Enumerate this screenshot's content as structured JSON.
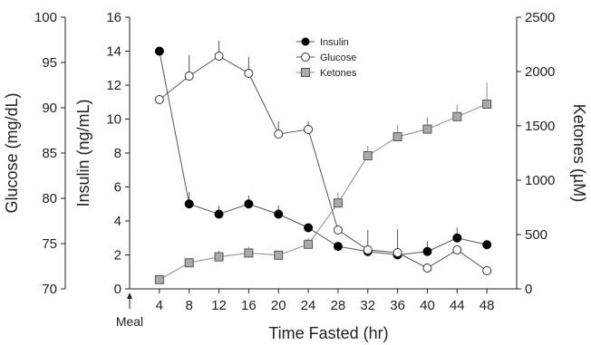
{
  "chart_data": {
    "type": "line",
    "xlabel": "Time Fasted (hr)",
    "x": [
      4,
      8,
      12,
      16,
      20,
      24,
      28,
      32,
      36,
      40,
      44,
      48
    ],
    "xlim": [
      0,
      52
    ],
    "xticks": [
      4,
      8,
      12,
      16,
      20,
      24,
      28,
      32,
      36,
      40,
      44,
      48
    ],
    "annotation": "Meal",
    "annotation_x": 0,
    "axes": {
      "glucose": {
        "label": "Glucose (mg/dL)",
        "position": "outer-left",
        "range": [
          70,
          100
        ],
        "ticks": [
          70,
          75,
          80,
          85,
          90,
          95,
          100
        ]
      },
      "insulin": {
        "label": "Insulin (ng/mL)",
        "position": "inner-left",
        "range": [
          0,
          16
        ],
        "ticks": [
          0,
          2,
          4,
          6,
          8,
          10,
          12,
          14,
          16
        ]
      },
      "ketones": {
        "label": "Ketones (µM)",
        "position": "right",
        "range": [
          0,
          2500
        ],
        "ticks": [
          0,
          500,
          1000,
          1500,
          2000,
          2500
        ]
      }
    },
    "legend_position": "top-center",
    "grid": false,
    "series": [
      {
        "name": "Insulin",
        "axis": "insulin",
        "marker": "circle-filled",
        "color": "#000000",
        "values": [
          14.0,
          5.0,
          4.4,
          5.0,
          4.4,
          3.6,
          2.5,
          2.2,
          2.0,
          2.2,
          3.0,
          2.6
        ],
        "errors": [
          0.0,
          0.7,
          0.5,
          0.5,
          0.5,
          0.0,
          0.0,
          0.0,
          0.0,
          0.6,
          0.6,
          0.0
        ]
      },
      {
        "name": "Glucose",
        "axis": "glucose",
        "marker": "circle-open",
        "color": "#000000",
        "values": [
          90.9,
          93.5,
          95.7,
          93.8,
          87.1,
          87.6,
          76.5,
          74.3,
          74.0,
          72.3,
          74.3,
          72.0
        ],
        "errors": [
          0.0,
          2.3,
          1.7,
          1.8,
          1.4,
          0.9,
          0.0,
          2.2,
          2.6,
          0.0,
          0.0,
          0.0
        ]
      },
      {
        "name": "Ketones",
        "axis": "ketones",
        "marker": "square-gray",
        "color": "#999999",
        "values": [
          85,
          240,
          295,
          330,
          310,
          410,
          790,
          1225,
          1400,
          1470,
          1585,
          1700
        ],
        "errors": [
          0,
          0,
          60,
          60,
          0,
          60,
          95,
          90,
          110,
          110,
          110,
          200
        ]
      }
    ]
  }
}
